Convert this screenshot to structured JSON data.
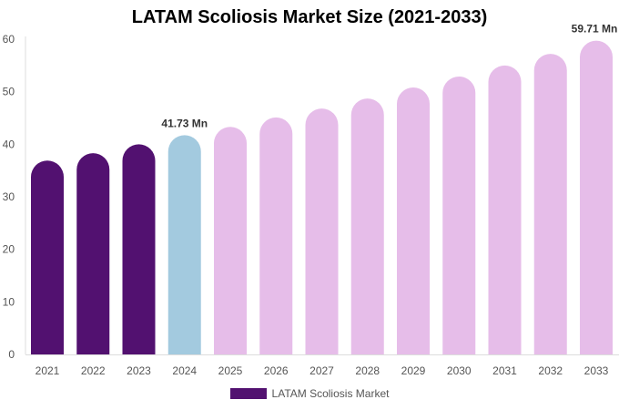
{
  "chart_data": {
    "type": "bar",
    "title": "LATAM Scoliosis Market Size (2021-2033)",
    "categories": [
      "2021",
      "2022",
      "2023",
      "2024",
      "2025",
      "2026",
      "2027",
      "2028",
      "2029",
      "2030",
      "2031",
      "2032",
      "2033"
    ],
    "series": [
      {
        "name": "LATAM Scoliosis Market",
        "values": [
          36.9,
          38.3,
          40.0,
          41.73,
          43.3,
          45.1,
          46.8,
          48.7,
          50.8,
          52.9,
          55.0,
          57.2,
          59.71
        ]
      }
    ],
    "data_labels": {
      "3": "41.73 Mn",
      "12": "59.71 Mn"
    },
    "ylim": [
      0,
      60
    ],
    "yticks": [
      0,
      10,
      20,
      30,
      40,
      50,
      60
    ],
    "grid": false,
    "legend_position": "bottom",
    "colors": {
      "historical": "#521170",
      "current": "#a3cadf",
      "forecast": "#e6bde9"
    }
  }
}
